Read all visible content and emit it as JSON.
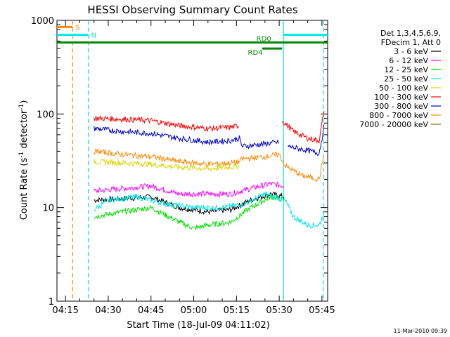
{
  "chart_data": {
    "type": "line",
    "title": "HESSI Observing Summary Count Rates",
    "xlabel": "Start Time (18-Jul-09 04:11:02)",
    "ylabel_main": "Count Rate (s",
    "ylabel_sup1": "-1",
    "ylabel_mid": " detector",
    "ylabel_sup2": "-1",
    "ylabel_end": ")",
    "y_scale": "log",
    "ylim": [
      1,
      1000
    ],
    "xlim_min": [
      252,
      347
    ],
    "xticks": [
      {
        "label": "04:15",
        "min": 255
      },
      {
        "label": "04:30",
        "min": 270
      },
      {
        "label": "04:45",
        "min": 285
      },
      {
        "label": "05:00",
        "min": 300
      },
      {
        "label": "05:15",
        "min": 315
      },
      {
        "label": "05:30",
        "min": 330
      },
      {
        "label": "05:45",
        "min": 345
      }
    ],
    "yticks": [
      {
        "label": "1",
        "value": 1
      },
      {
        "label": "10",
        "value": 10
      },
      {
        "label": "100",
        "value": 100
      },
      {
        "label": "1000",
        "value": 1000
      }
    ],
    "legend_header": [
      "Det 1,3,4,5,6,9,",
      "FDecim 1, Att 0"
    ],
    "legend_position": "right",
    "series": [
      {
        "name": "3 - 6 keV",
        "color": "#000000",
        "values": [
          [
            265,
            12
          ],
          [
            275,
            12.5
          ],
          [
            285,
            13
          ],
          [
            295,
            10
          ],
          [
            305,
            9
          ],
          [
            313,
            9.5
          ],
          [
            320,
            12
          ],
          [
            327,
            14
          ],
          [
            332,
            13
          ],
          [
            333,
            null
          ],
          [
            345,
            null
          ]
        ]
      },
      {
        "name": "6 - 12 keV",
        "color": "#ff00ff",
        "values": [
          [
            265,
            15
          ],
          [
            275,
            16
          ],
          [
            285,
            17
          ],
          [
            295,
            14
          ],
          [
            305,
            14
          ],
          [
            313,
            14
          ],
          [
            320,
            16
          ],
          [
            327,
            18
          ],
          [
            332,
            17
          ],
          [
            333,
            null
          ],
          [
            345,
            null
          ]
        ]
      },
      {
        "name": "12 - 25 keV",
        "color": "#00e000",
        "values": [
          [
            265,
            8
          ],
          [
            275,
            9
          ],
          [
            285,
            10
          ],
          [
            295,
            7
          ],
          [
            300,
            6
          ],
          [
            305,
            6.5
          ],
          [
            313,
            7
          ],
          [
            320,
            10
          ],
          [
            327,
            13
          ],
          [
            332,
            12
          ],
          [
            333,
            null
          ],
          [
            345,
            null
          ]
        ]
      },
      {
        "name": "25 - 50 keV",
        "color": "#00e8e8",
        "values": [
          [
            265,
            9.5
          ],
          [
            270,
            12
          ],
          [
            280,
            13
          ],
          [
            290,
            11
          ],
          [
            300,
            10
          ],
          [
            310,
            10
          ],
          [
            318,
            11
          ],
          [
            325,
            14
          ],
          [
            332,
            12
          ],
          [
            335,
            8
          ],
          [
            340,
            6.5
          ],
          [
            344,
            6.5
          ],
          [
            346,
            9
          ]
        ]
      },
      {
        "name": "50 - 100 keV",
        "color": "#d8d800",
        "values": [
          [
            265,
            31
          ],
          [
            275,
            30
          ],
          [
            285,
            29
          ],
          [
            295,
            27
          ],
          [
            305,
            26
          ],
          [
            313,
            27
          ],
          [
            316,
            28
          ],
          [
            317,
            null
          ]
        ]
      },
      {
        "name": "100 - 300 keV",
        "color": "#ff0000",
        "values": [
          [
            265,
            90
          ],
          [
            275,
            88
          ],
          [
            285,
            85
          ],
          [
            295,
            75
          ],
          [
            305,
            70
          ],
          [
            313,
            72
          ],
          [
            316,
            75
          ],
          [
            317,
            null
          ],
          [
            330,
            null
          ],
          [
            331,
            85
          ],
          [
            335,
            65
          ],
          [
            340,
            55
          ],
          [
            344,
            52
          ],
          [
            346,
            120
          ]
        ]
      },
      {
        "name": "300 - 800 keV",
        "color": "#0000cc",
        "values": [
          [
            265,
            70
          ],
          [
            275,
            65
          ],
          [
            285,
            62
          ],
          [
            295,
            55
          ],
          [
            305,
            50
          ],
          [
            313,
            52
          ],
          [
            316,
            55
          ],
          [
            317,
            45
          ],
          [
            325,
            48
          ],
          [
            330,
            50
          ],
          [
            331,
            null
          ],
          [
            333,
            45
          ],
          [
            338,
            42
          ],
          [
            344,
            38
          ],
          [
            346,
            80
          ]
        ]
      },
      {
        "name": "800 - 7000 keV",
        "color": "#ff8800",
        "values": [
          [
            265,
            40
          ],
          [
            275,
            37
          ],
          [
            285,
            35
          ],
          [
            295,
            31
          ],
          [
            305,
            29
          ],
          [
            313,
            30
          ],
          [
            316,
            31
          ],
          [
            317,
            33
          ],
          [
            325,
            35
          ],
          [
            330,
            37
          ],
          [
            332,
            28
          ],
          [
            338,
            22
          ],
          [
            344,
            20
          ],
          [
            346,
            40
          ]
        ]
      },
      {
        "name": "7000 - 20000 keV",
        "color": "#8b6a00",
        "values": []
      }
    ],
    "flags": [
      {
        "label": "S",
        "color": "#ff8800",
        "x0": 252,
        "x1": 257.5,
        "y": 850
      },
      {
        "label": "N",
        "color": "#00e8e8",
        "x0": 252,
        "x1": 263,
        "y": 700
      },
      {
        "label": "",
        "color": "#00e8e8",
        "x0": 331.5,
        "x1": 347,
        "y": 700
      },
      {
        "label": "RD0",
        "color": "#008800",
        "x0": 252,
        "x1": 347,
        "y": 580
      },
      {
        "label": "RD4",
        "color": "#008800",
        "x0": 324,
        "x1": 331,
        "y": 500
      }
    ],
    "vlines": [
      {
        "x": 257.5,
        "color": "#ff8800",
        "style": "dashed"
      },
      {
        "x": 263,
        "color": "#00e8e8",
        "style": "dashed"
      },
      {
        "x": 331.5,
        "color": "#00e8e8",
        "style": "solid"
      },
      {
        "x": 345.5,
        "color": "#00e8e8",
        "style": "dashed"
      }
    ]
  },
  "footer_date": "11-Mar-2010 09:39"
}
